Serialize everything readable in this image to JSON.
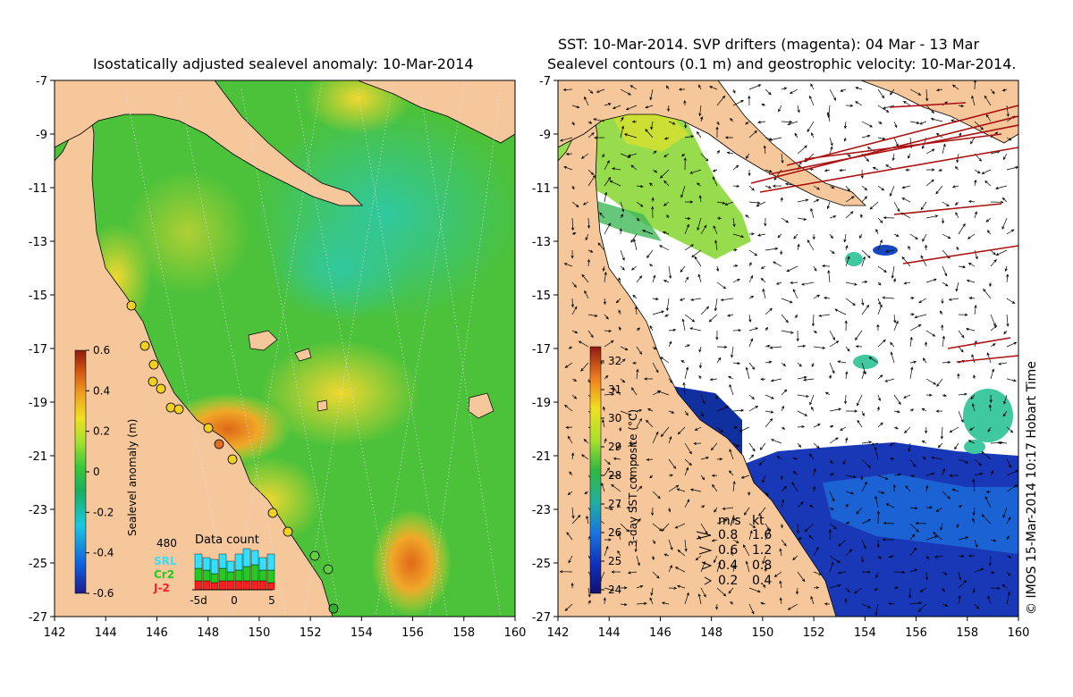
{
  "left_panel": {
    "title": "Isostatically adjusted sealevel anomaly: 10-Mar-2014",
    "y_ticks": [
      "-7",
      "-9",
      "-11",
      "-13",
      "-15",
      "-17",
      "-19",
      "-21",
      "-23",
      "-25",
      "-27"
    ],
    "x_ticks": [
      "142",
      "144",
      "146",
      "148",
      "150",
      "152",
      "154",
      "156",
      "158",
      "160"
    ],
    "colorbar": {
      "label": "Sealevel anomaly (m)",
      "ticks": [
        "0.6",
        "0.4",
        "0.2",
        "0",
        "-0.2",
        "-0.4",
        "-0.6"
      ]
    },
    "inset": {
      "title": "Data count",
      "count": "480",
      "legend": [
        {
          "label": "SRL",
          "color": "#33e0ff"
        },
        {
          "label": "Cr2",
          "color": "#22cc22"
        },
        {
          "label": "J-2",
          "color": "#ff1e1e"
        }
      ],
      "x_ticks": [
        "-5d",
        "0",
        "5"
      ],
      "bars": [
        {
          "srl": 0.4,
          "cr2": 0.35,
          "j2": 0.25
        },
        {
          "srl": 0.35,
          "cr2": 0.3,
          "j2": 0.25
        },
        {
          "srl": 0.4,
          "cr2": 0.25,
          "j2": 0.2
        },
        {
          "srl": 0.4,
          "cr2": 0.35,
          "j2": 0.25
        },
        {
          "srl": 0.3,
          "cr2": 0.25,
          "j2": 0.25
        },
        {
          "srl": 0.45,
          "cr2": 0.3,
          "j2": 0.25
        },
        {
          "srl": 0.5,
          "cr2": 0.4,
          "j2": 0.25
        },
        {
          "srl": 0.4,
          "cr2": 0.45,
          "j2": 0.25
        },
        {
          "srl": 0.35,
          "cr2": 0.3,
          "j2": 0.25
        },
        {
          "srl": 0.45,
          "cr2": 0.35,
          "j2": 0.2
        }
      ]
    },
    "colors": {
      "land": "#f5c79a",
      "sea_base": "#4fc43a"
    }
  },
  "right_panel": {
    "title_line1": "SST: 10-Mar-2014. SVP drifters (magenta): 04 Mar - 13 Mar",
    "title_line2": "Sealevel contours (0.1 m) and geostrophic velocity: 10-Mar-2014.",
    "y_ticks": [
      "-7",
      "-9",
      "-11",
      "-13",
      "-15",
      "-17",
      "-19",
      "-21",
      "-23",
      "-25",
      "-27"
    ],
    "x_ticks": [
      "142",
      "144",
      "146",
      "148",
      "150",
      "152",
      "154",
      "156",
      "158",
      "160"
    ],
    "colorbar": {
      "label": "3-day SST composite (°C)",
      "ticks": [
        "32",
        "31",
        "30",
        "29",
        "28",
        "27",
        "26",
        "25",
        "24"
      ]
    },
    "velocity_legend": {
      "header_ms": "m/s",
      "header_kt": "kt",
      "rows": [
        {
          "ms": "0.8",
          "kt": "1.6"
        },
        {
          "ms": "0.6",
          "kt": "1.2"
        },
        {
          "ms": "0.4",
          "kt": "0.8"
        },
        {
          "ms": "0.2",
          "kt": "0.4"
        }
      ]
    },
    "credit": "© IMOS 15-Mar-2014 10:17 Hobart Time",
    "colors": {
      "land": "#f5c79a",
      "cold": "#1030a0",
      "drifter": "#aa1111"
    }
  }
}
